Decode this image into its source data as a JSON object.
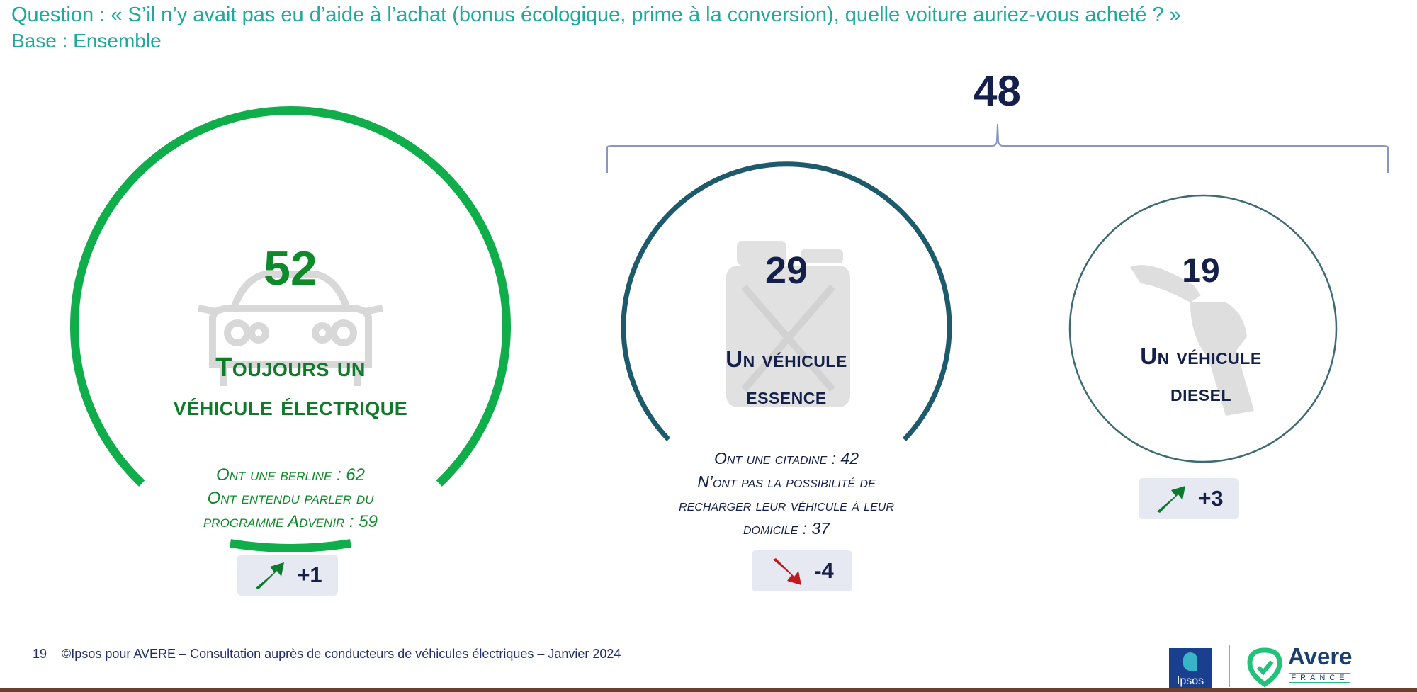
{
  "header": {
    "question": "Question : « S’il n’y avait pas eu d’aide à l’achat (bonus écologique, prime à la conversion), quelle voiture auriez-vous acheté ? »",
    "base": "Base : Ensemble"
  },
  "bracket": {
    "total": "48"
  },
  "items": [
    {
      "value": "52",
      "label_line1": "Toujours un",
      "label_line2": "véhicule électrique",
      "notes": [
        "Ont une berline : 62",
        "Ont entendu parler du",
        "programme Advenir : 59"
      ],
      "change": "+1",
      "trend": "up",
      "color": "#0fae4a",
      "icon": "car-icon"
    },
    {
      "value": "29",
      "label_line1": "Un véhicule",
      "label_line2": "essence",
      "notes": [
        "Ont une citadine : 42",
        "N’ont pas la possibilité de",
        "recharger leur véhicule à leur",
        "domicile : 37"
      ],
      "change": "-4",
      "trend": "down",
      "color": "#1d5a6b",
      "icon": "jerrycan-icon"
    },
    {
      "value": "19",
      "label_line1": "Un véhicule",
      "label_line2": "diesel",
      "notes": [],
      "change": "+3",
      "trend": "up",
      "color": "#3d6b73",
      "icon": "fuel-nozzle-icon"
    }
  ],
  "colors": {
    "accent": "#1fa89e",
    "navy": "#14204a",
    "green": "#0fae4a",
    "up_arrow": "#0c7a2c",
    "down_arrow": "#c21a1a"
  },
  "footer": {
    "page": "19",
    "text": "©Ipsos pour AVERE – Consultation auprès de conducteurs de véhicules électriques – Janvier 2024"
  },
  "logos": {
    "ipsos": "Ipsos",
    "avere": "Avere",
    "avere_sub": "FRANCE"
  }
}
